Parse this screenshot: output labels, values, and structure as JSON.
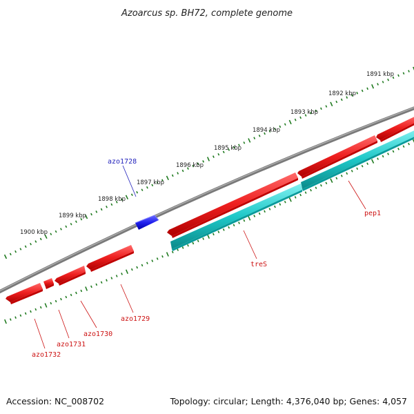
{
  "title": "Azoarcus sp. BH72, complete genome",
  "footer": {
    "accession": "Accession: NC_008702",
    "summary": "Topology: circular; Length: 4,376,040 bp; Genes: 4,057"
  },
  "colors": {
    "backbone": "#7a7a7a",
    "tick": "#1f7a1f",
    "gene_forward_strand": "#1f1fee",
    "gene_reverse_strand": "#ee1f1f",
    "gene_cds": "#1fc8c8",
    "label_forward": "#1f1fbb",
    "label_reverse": "#cc1111"
  },
  "tick_labels": [
    "1891 kbp",
    "1892 kbp",
    "1893 kbp",
    "1894 kbp",
    "1895 kbp",
    "1896 kbp",
    "1897 kbp",
    "1898 kbp",
    "1899 kbp",
    "1900 kbp"
  ],
  "genes": [
    {
      "name": "azo1728",
      "strand": "forward",
      "color": "blue"
    },
    {
      "name": "azo1729",
      "strand": "reverse",
      "color": "red"
    },
    {
      "name": "azo1730",
      "strand": "reverse",
      "color": "red"
    },
    {
      "name": "azo1731",
      "strand": "reverse",
      "color": "red"
    },
    {
      "name": "azo1732",
      "strand": "reverse",
      "color": "red"
    },
    {
      "name": "treS",
      "strand": "reverse",
      "color": "red"
    },
    {
      "name": "pep1",
      "strand": "reverse",
      "color": "red"
    }
  ]
}
